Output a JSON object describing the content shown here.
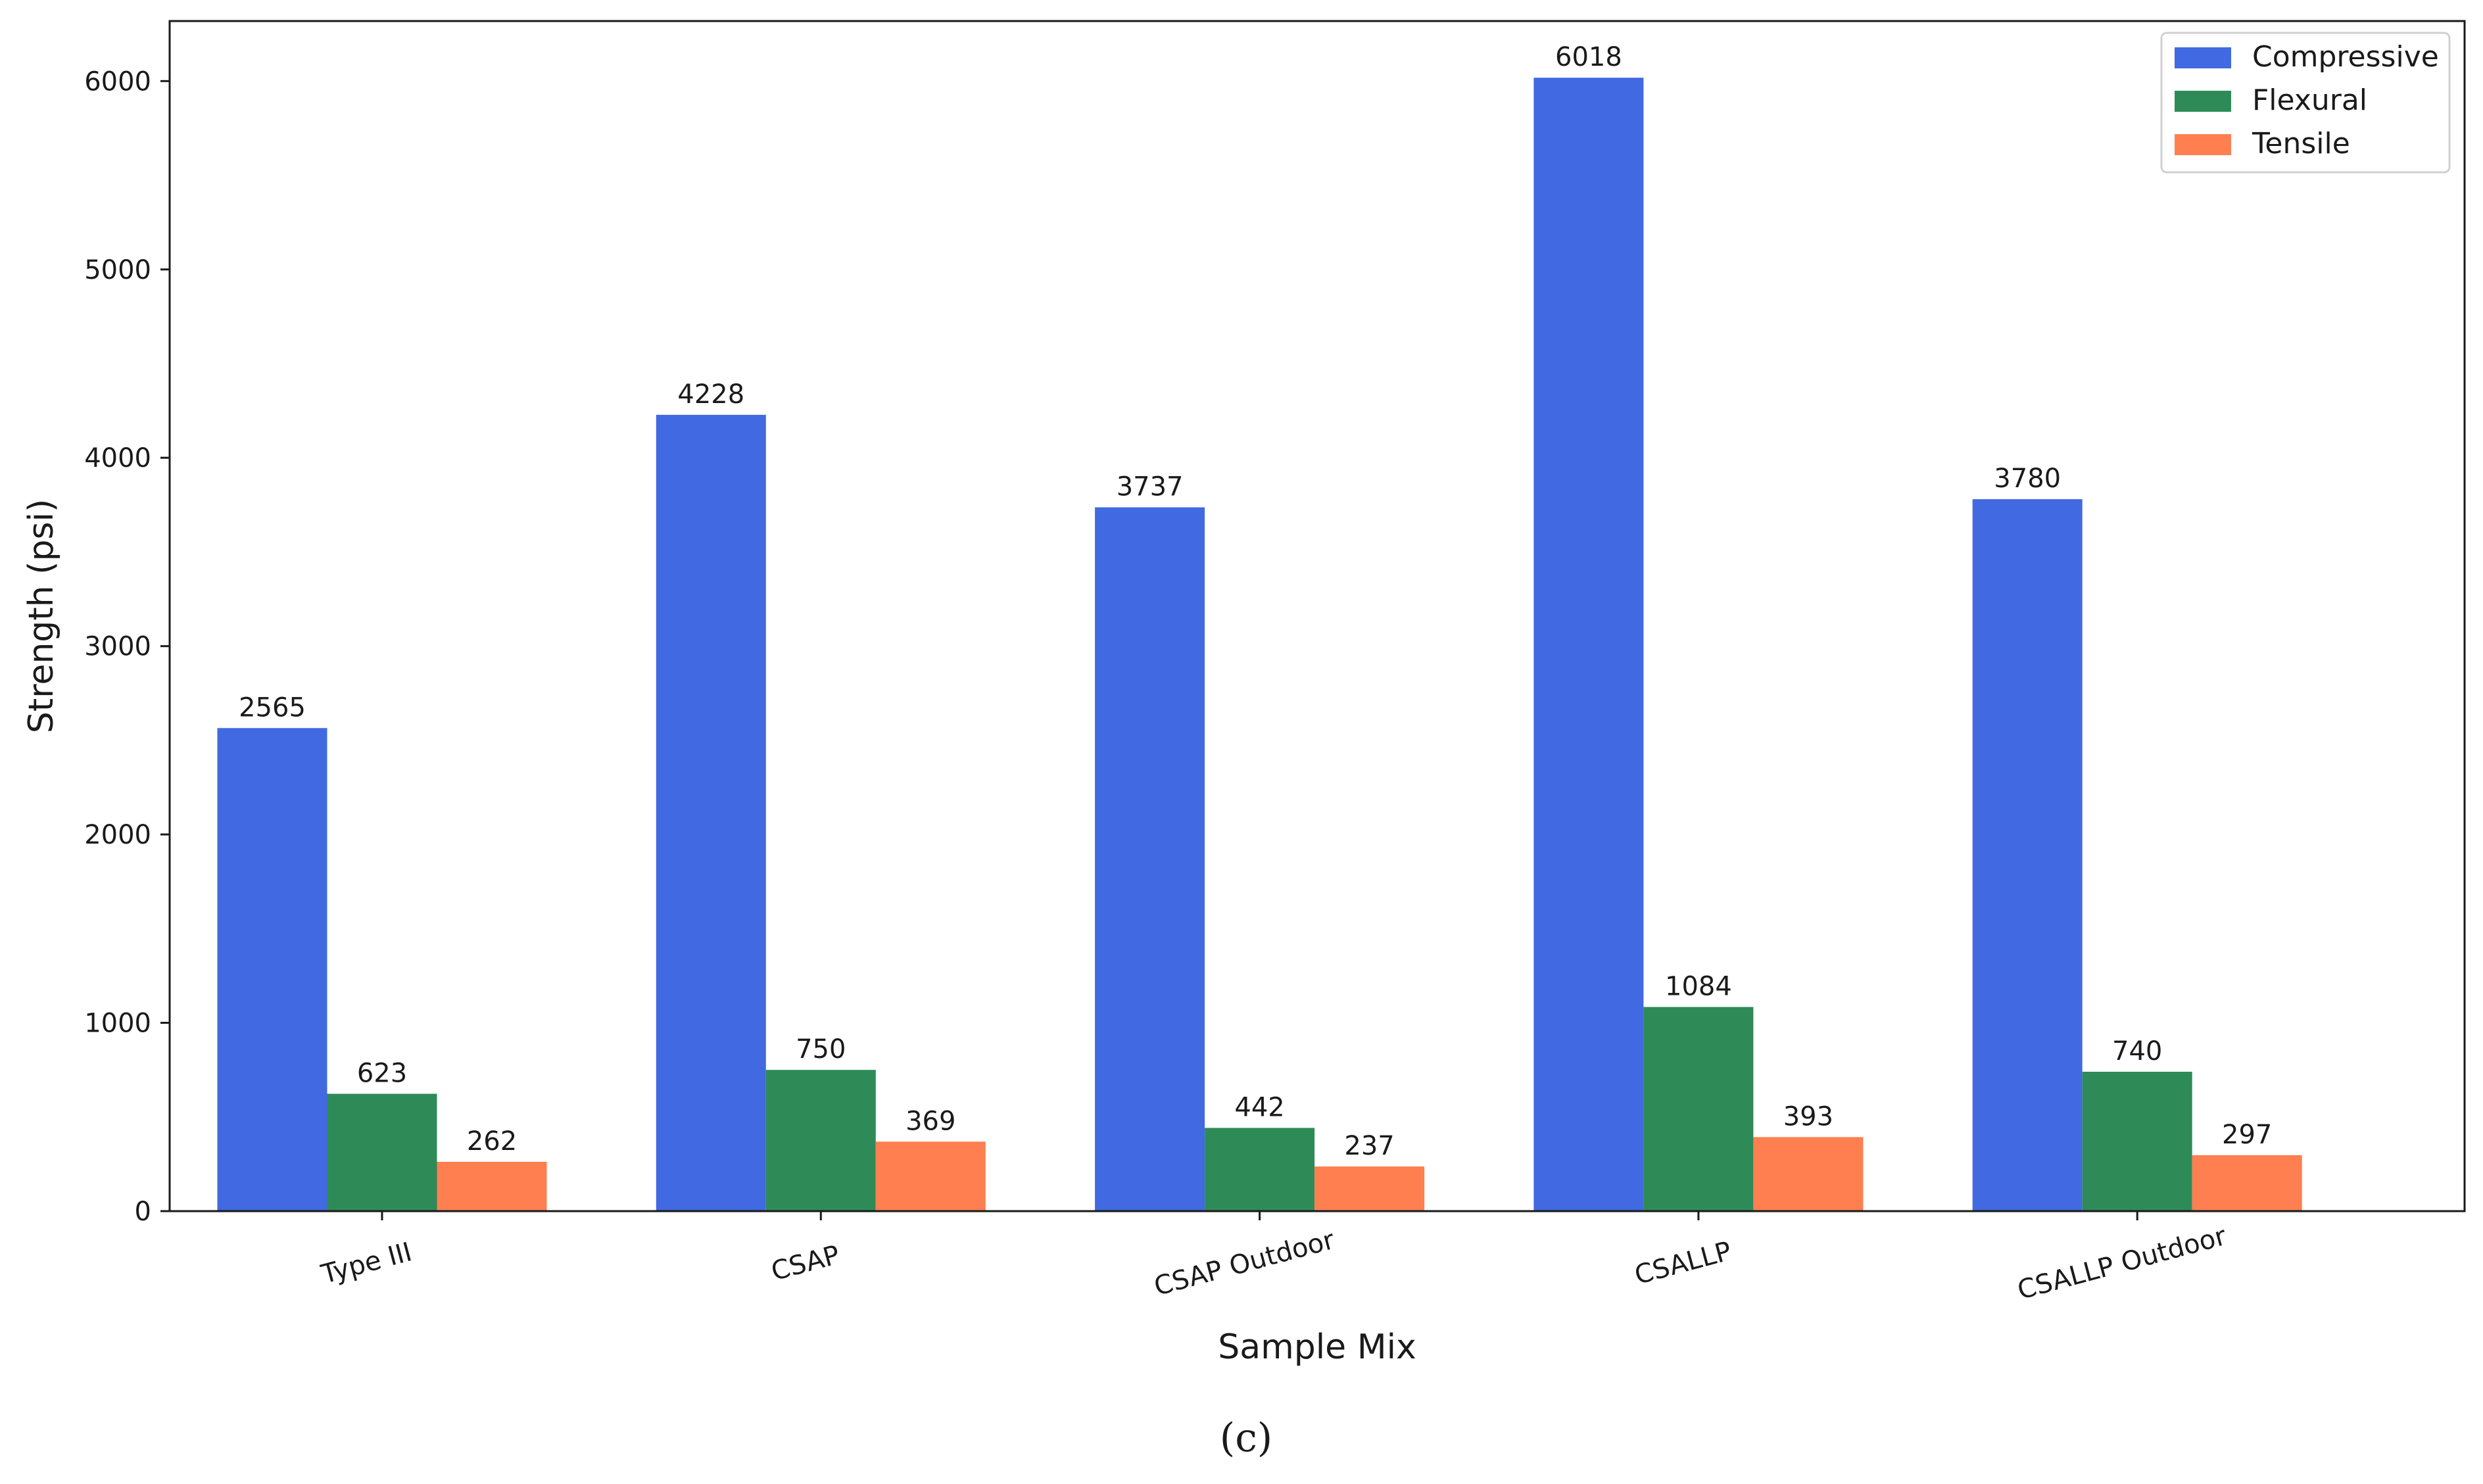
{
  "chart_data": {
    "type": "bar",
    "xlabel": "Sample Mix",
    "ylabel": "Strength (psi)",
    "categories": [
      "Type III",
      "CSAP",
      "CSAP Outdoor",
      "CSALLP",
      "CSALLP Outdoor"
    ],
    "series": [
      {
        "name": "Compressive",
        "color": "#4169e1",
        "values": [
          2565,
          4228,
          3737,
          6018,
          3780
        ]
      },
      {
        "name": "Flexural",
        "color": "#2e8b57",
        "values": [
          623,
          750,
          442,
          1084,
          740
        ]
      },
      {
        "name": "Tensile",
        "color": "#ff7f50",
        "values": [
          262,
          369,
          237,
          393,
          297
        ]
      }
    ],
    "ylim": [
      0,
      6318.9
    ],
    "yticks": [
      0,
      1000,
      2000,
      3000,
      4000,
      5000,
      6000
    ],
    "legend": "top-right",
    "grid": false
  },
  "caption": "(c)"
}
